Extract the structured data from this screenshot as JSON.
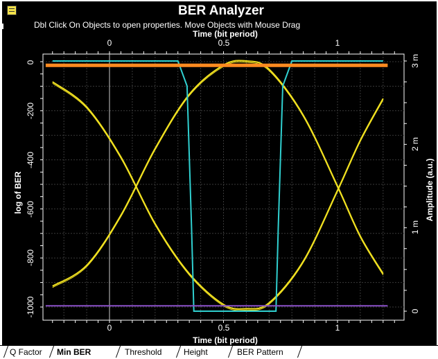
{
  "window": {
    "title": "BER Analyzer",
    "subtitle": "Dbl Click On Objects to open properties.  Move Objects with Mouse Drag"
  },
  "axes": {
    "top_xlabel": "Time (bit period)",
    "bottom_xlabel": "Time (bit period)",
    "left_ylabel": "log of BER",
    "right_ylabel": "Amplitude (a.u.)",
    "top_ticks": [
      "0",
      "0.5",
      "1"
    ],
    "bottom_ticks": [
      "0",
      "0.5",
      "1"
    ],
    "left_ticks": [
      "0",
      "-200",
      "-400",
      "-600",
      "-800",
      "-1000"
    ],
    "right_ticks": [
      "3 m",
      "2 m",
      "1 m",
      "0"
    ]
  },
  "tabs": [
    {
      "label": "Q Factor",
      "active": false
    },
    {
      "label": "Min BER",
      "active": true
    },
    {
      "label": "Threshold",
      "active": false
    },
    {
      "label": "Height",
      "active": false
    },
    {
      "label": "BER Pattern",
      "active": false
    }
  ],
  "chart_data": {
    "type": "line",
    "title": "BER Analyzer",
    "xlabel": "Time (bit period)",
    "ylabel": "log of BER",
    "y2label": "Amplitude (a.u.)",
    "xlim": [
      -0.3,
      1.25
    ],
    "ylim": [
      -1020,
      0
    ],
    "y2lim": [
      0,
      3
    ],
    "grid": true,
    "series": [
      {
        "color": "#f0e020",
        "axis": "right",
        "x": [
          -0.25,
          -0.1,
          0.05,
          0.2,
          0.35,
          0.5,
          0.6,
          0.7,
          0.85,
          1.0,
          1.1,
          1.2
        ],
        "values": [
          0.3,
          0.55,
          1.15,
          1.95,
          2.6,
          2.95,
          3.0,
          2.9,
          2.35,
          1.5,
          0.9,
          0.45
        ]
      },
      {
        "color": "#f0e020",
        "axis": "right",
        "x": [
          -0.25,
          -0.1,
          0.05,
          0.2,
          0.35,
          0.5,
          0.6,
          0.7,
          0.85,
          1.0,
          1.1,
          1.2
        ],
        "values": [
          2.75,
          2.45,
          1.85,
          1.05,
          0.45,
          0.08,
          0.03,
          0.1,
          0.6,
          1.45,
          2.05,
          2.55
        ]
      },
      {
        "color": "#30d0d0",
        "axis": "right",
        "x": [
          -0.25,
          0.3,
          0.34,
          0.36,
          0.37,
          0.73,
          0.74,
          0.76,
          0.8,
          1.2
        ],
        "values": [
          3.0,
          3.0,
          2.7,
          1.0,
          0.0,
          0.0,
          1.0,
          2.7,
          3.0,
          3.0
        ]
      },
      {
        "color": "#ff8a20",
        "axis": "left",
        "x": [
          -0.28,
          1.22
        ],
        "values": [
          -15,
          -15
        ]
      },
      {
        "color": "#8a50c8",
        "axis": "left",
        "x": [
          -0.28,
          1.22
        ],
        "values": [
          -995,
          -995
        ]
      }
    ]
  }
}
